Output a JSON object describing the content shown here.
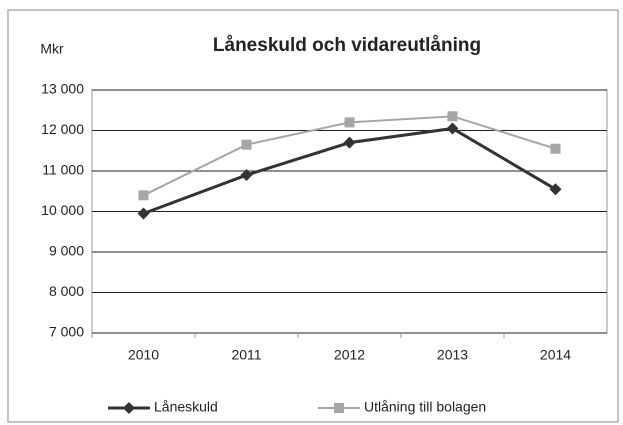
{
  "chart_data": {
    "type": "line",
    "title": "Låneskuld och vidareutlåning",
    "y_label": "Mkr",
    "categories": [
      "2010",
      "2011",
      "2012",
      "2013",
      "2014"
    ],
    "series": [
      {
        "name": "Låneskuld",
        "color": "#333333",
        "marker": "diamond",
        "values": [
          9950,
          10900,
          11700,
          12050,
          10550
        ]
      },
      {
        "name": "Utlåning till bolagen",
        "color": "#a6a6a6",
        "marker": "square",
        "values": [
          10400,
          11650,
          12200,
          12350,
          11550
        ]
      }
    ],
    "ylim": [
      7000,
      13000
    ],
    "yticks": [
      {
        "value": 7000,
        "label": "7 000"
      },
      {
        "value": 8000,
        "label": "8 000"
      },
      {
        "value": 9000,
        "label": "9 000"
      },
      {
        "value": 10000,
        "label": "10 000"
      },
      {
        "value": 11000,
        "label": "11 000"
      },
      {
        "value": 12000,
        "label": "12 000"
      },
      {
        "value": 13000,
        "label": "13 000"
      }
    ],
    "grid": true,
    "legend": "bottom"
  }
}
